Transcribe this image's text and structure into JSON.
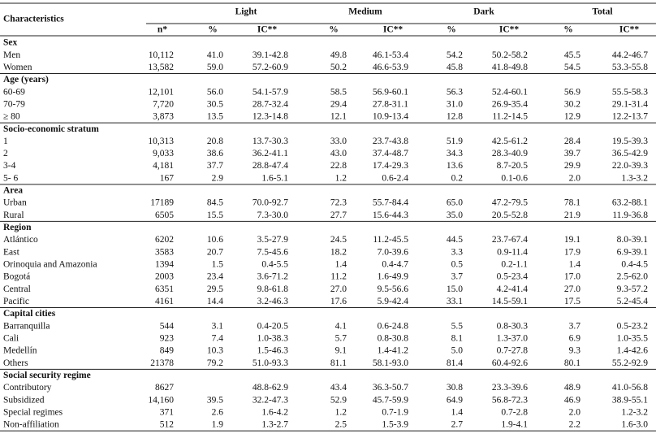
{
  "header": {
    "label": "Characteristics",
    "groups": [
      "Light",
      "Medium",
      "Dark",
      "Total"
    ],
    "subheaders": [
      "n*",
      "%",
      "IC**",
      "%",
      "IC**",
      "%",
      "IC**",
      "%",
      "IC**"
    ]
  },
  "sections": [
    {
      "title": "Sex",
      "rows": [
        [
          "Men",
          "10,112",
          "41.0",
          "39.1-42.8",
          "49.8",
          "46.1-53.4",
          "54.2",
          "50.2-58.2",
          "45.5",
          "44.2-46.7"
        ],
        [
          "Women",
          "13,582",
          "59.0",
          "57.2-60.9",
          "50.2",
          "46.6-53.9",
          "45.8",
          "41.8-49.8",
          "54.5",
          "53.3-55.8"
        ]
      ]
    },
    {
      "title": "Age (years)",
      "rows": [
        [
          "60-69",
          "12,101",
          "56.0",
          "54.1-57.9",
          "58.5",
          "56.9-60.1",
          "56.3",
          "52.4-60.1",
          "56.9",
          "55.5-58.3"
        ],
        [
          "70-79",
          "7,720",
          "30.5",
          "28.7-32.4",
          "29.4",
          "27.8-31.1",
          "31.0",
          "26.9-35.4",
          "30.2",
          "29.1-31.4"
        ],
        [
          "≥ 80",
          "3,873",
          "13.5",
          "12.3-14.8",
          "12.1",
          "10.9-13.4",
          "12.8",
          "11.2-14.5",
          "12.9",
          "12.2-13.7"
        ]
      ]
    },
    {
      "title": "Socio-economic stratum",
      "rows": [
        [
          "1",
          "10,313",
          "20.8",
          "13.7-30.3",
          "33.0",
          "23.7-43.8",
          "51.9",
          "42.5-61.2",
          "28.4",
          "19.5-39.3"
        ],
        [
          "2",
          "9,033",
          "38.6",
          "36.2-41.1",
          "43.0",
          "37.4-48.7",
          "34.3",
          "28.3-40.9",
          "39.7",
          "36.5-42.9"
        ],
        [
          "3-4",
          "4,181",
          "37.7",
          "28.8-47.4",
          "22.8",
          "17.4-29.3",
          "13.6",
          "8.7-20.5",
          "29.9",
          "22.0-39.3"
        ],
        [
          "5- 6",
          "167",
          "2.9",
          "1.6-5.1",
          "1.2",
          "0.6-2.4",
          "0.2",
          "0.1-0.6",
          "2.0",
          "1.3-3.2"
        ]
      ]
    },
    {
      "title": "Area",
      "rows": [
        [
          "Urban",
          "17189",
          "84.5",
          "70.0-92.7",
          "72.3",
          "55.7-84.4",
          "65.0",
          "47.2-79.5",
          "78.1",
          "63.2-88.1"
        ],
        [
          "Rural",
          "6505",
          "15.5",
          "7.3-30.0",
          "27.7",
          "15.6-44.3",
          "35.0",
          "20.5-52.8",
          "21.9",
          "11.9-36.8"
        ]
      ]
    },
    {
      "title": "Region",
      "rows": [
        [
          "Atlántico",
          "6202",
          "10.6",
          "3.5-27.9",
          "24.5",
          "11.2-45.5",
          "44.5",
          "23.7-67.4",
          "19.1",
          "8.0-39.1"
        ],
        [
          "East",
          "3583",
          "20.7",
          "7.5-45.6",
          "18.2",
          "7.0-39.6",
          "3.3",
          "0.9-11.4",
          "17.9",
          "6.9-39.1"
        ],
        [
          "Orinoquia and Amazonia",
          "1394",
          "1.5",
          "0.4-5.5",
          "1.4",
          "0.4-4.7",
          "0.5",
          "0.2-1.1",
          "1.4",
          "0.4-4.5"
        ],
        [
          "Bogotá",
          "2003",
          "23.4",
          "3.6-71.2",
          "11.2",
          "1.6-49.9",
          "3.7",
          "0.5-23.4",
          "17.0",
          "2.5-62.0"
        ],
        [
          "Central",
          "6351",
          "29.5",
          "9.8-61.8",
          "27.0",
          "9.5-56.6",
          "15.0",
          "4.2-41.4",
          "27.0",
          "9.3-57.2"
        ],
        [
          "Pacific",
          "4161",
          "14.4",
          "3.2-46.3",
          "17.6",
          "5.9-42.4",
          "33.1",
          "14.5-59.1",
          "17.5",
          "5.2-45.4"
        ]
      ]
    },
    {
      "title": "Capital cities",
      "rows": [
        [
          "Barranquilla",
          "544",
          "3.1",
          "0.4-20.5",
          "4.1",
          "0.6-24.8",
          "5.5",
          "0.8-30.3",
          "3.7",
          "0.5-23.2"
        ],
        [
          "Cali",
          "923",
          "7.4",
          "1.0-38.3",
          "5.7",
          "0.8-30.8",
          "8.1",
          "1.3-37.0",
          "6.9",
          "1.0-35.5"
        ],
        [
          "Medellín",
          "849",
          "10.3",
          "1.5-46.3",
          "9.1",
          "1.4-41.2",
          "5.0",
          "0.7-27.8",
          "9.3",
          "1.4-42.6"
        ],
        [
          "Others",
          "21378",
          "79.2",
          "51.0-93.3",
          "81.1",
          "58.1-93.0",
          "81.4",
          "60.4-92.6",
          "80.1",
          "55.2-92.9"
        ]
      ]
    },
    {
      "title": "Social security regime",
      "rows": [
        [
          "Contributory",
          "8627",
          null,
          "48.8-62.9",
          "43.4",
          "36.3-50.7",
          "30.8",
          "23.3-39.6",
          "48.9",
          "41.0-56.8"
        ],
        [
          "Subsidized",
          "14,160",
          "39.5",
          "32.2-47.3",
          "52.9",
          "45.7-59.9",
          "64.9",
          "56.8-72.3",
          "46.9",
          "38.9-55.1"
        ],
        [
          "Special regimes",
          "371",
          "2.6",
          "1.6-4.2",
          "1.2",
          "0.7-1.9",
          "1.4",
          "0.7-2.8",
          "2.0",
          "1.2-3.2"
        ],
        [
          "Non-affiliation",
          "512",
          "1.9",
          "1.3-2.7",
          "2.5",
          "1.5-3.9",
          "2.7",
          "1.9-4.1",
          "2.2",
          "1.6-3.0"
        ]
      ]
    }
  ]
}
